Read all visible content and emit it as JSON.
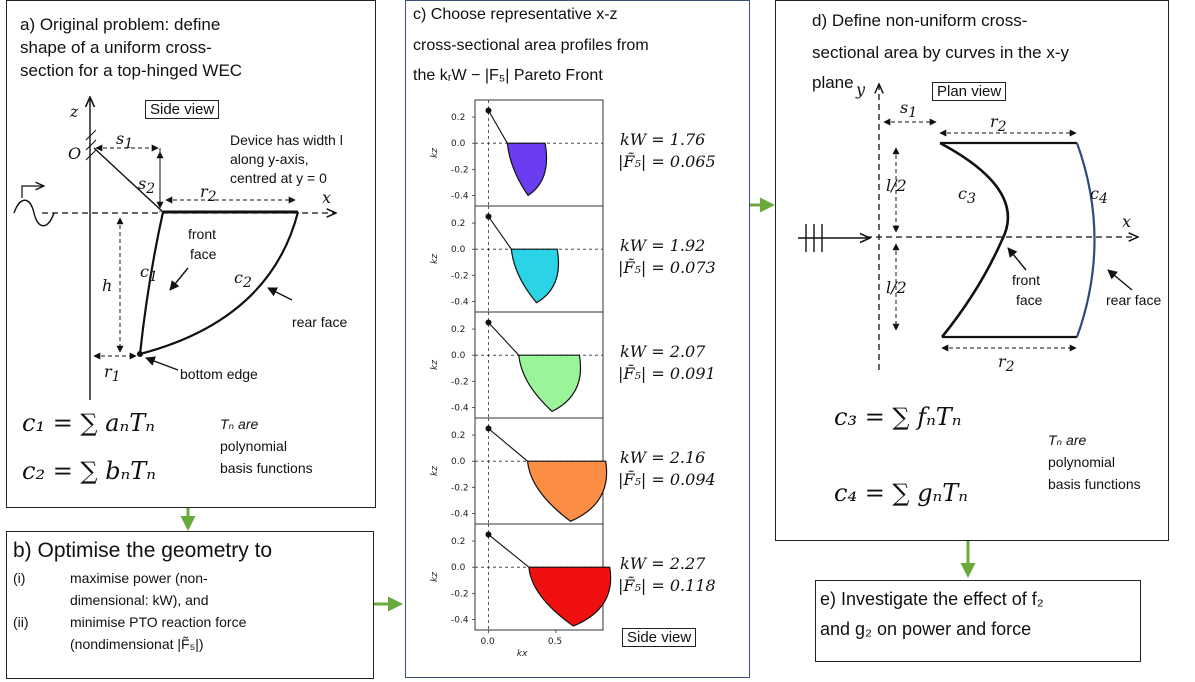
{
  "panel_a": {
    "title_lines": [
      "a) Original problem: define",
      "shape of a uniform cross-",
      "section for a top-hinged WEC"
    ],
    "view_label": "Side view",
    "axis_z": "z",
    "axis_x": "x",
    "origin": "O",
    "s1": "s",
    "s1_sub": "1",
    "s2": "s",
    "s2_sub": "2",
    "r1": "r",
    "r1_sub": "1",
    "r2": "r",
    "r2_sub": "2",
    "h": "h",
    "c1": "c",
    "c1_sub": "1",
    "c2": "c",
    "c2_sub": "2",
    "device_note": [
      "Device has width l",
      "along y-axis,",
      "centred at y = 0"
    ],
    "front_face": [
      "front",
      "face"
    ],
    "rear_face": "rear face",
    "bottom_edge": "bottom edge",
    "eq1": "c₁ = ∑ aₙTₙ",
    "eq2": "c₂ = ∑ bₙTₙ",
    "basis_note": [
      "Tₙ are",
      "polynomial",
      "basis functions"
    ]
  },
  "panel_b": {
    "title": "b) Optimise the geometry to",
    "items": [
      {
        "marker": "(i)",
        "lines": [
          "maximise power (non-",
          "dimensional: kW), and"
        ]
      },
      {
        "marker": "(ii)",
        "lines": [
          "minimise PTO reaction force",
          "(nondimensionat |F̃₅|)"
        ]
      }
    ]
  },
  "panel_c": {
    "title_lines": [
      "c) Choose representative x-z",
      "cross-sectional area profiles from",
      "the kᵣW − |F₅| Pareto Front"
    ],
    "view_label": "Side view",
    "ylabel": "kz",
    "xlabel": "kx",
    "yticks": [
      "0.2",
      "0.0",
      "-0.2",
      "-0.4"
    ],
    "xticks": [
      "0.0",
      "0.5"
    ],
    "profiles": [
      {
        "kW": "kW = 1.76",
        "F5": "|F̃₅| = 0.065",
        "color": "#6a3df0"
      },
      {
        "kW": "kW = 1.92",
        "F5": "|F̃₅| = 0.073",
        "color": "#2ad3e6"
      },
      {
        "kW": "kW = 2.07",
        "F5": "|F̃₅| = 0.091",
        "color": "#9af59a"
      },
      {
        "kW": "kW = 2.16",
        "F5": "|F̃₅| = 0.094",
        "color": "#fb8d45"
      },
      {
        "kW": "kW = 2.27",
        "F5": "|F̃₅| = 0.118",
        "color": "#f01010"
      }
    ]
  },
  "panel_d": {
    "title_lines": [
      "d) Define non-uniform  cross-",
      "sectional area by curves in the x-y",
      "plane"
    ],
    "view_label": "Plan view",
    "axis_y": "y",
    "axis_x": "x",
    "s1": "s",
    "s1_sub": "1",
    "r2": "r",
    "r2_sub": "2",
    "half_l": "l/2",
    "c3": "c",
    "c3_sub": "3",
    "c4": "c",
    "c4_sub": "4",
    "front_face": [
      "front",
      "face"
    ],
    "rear_face": "rear face",
    "eq1": "c₃ = ∑ fₙTₙ",
    "eq2": "c₄ = ∑ gₙTₙ",
    "basis_note": [
      "Tₙ are",
      "polynomial",
      "basis functions"
    ]
  },
  "panel_e": {
    "lines": [
      "e) Investigate the effect of f₂",
      "and g₂ on power and force"
    ]
  },
  "colors": {
    "arrow": "#6aaa3c",
    "c4_curve": "#2c4a7a"
  }
}
